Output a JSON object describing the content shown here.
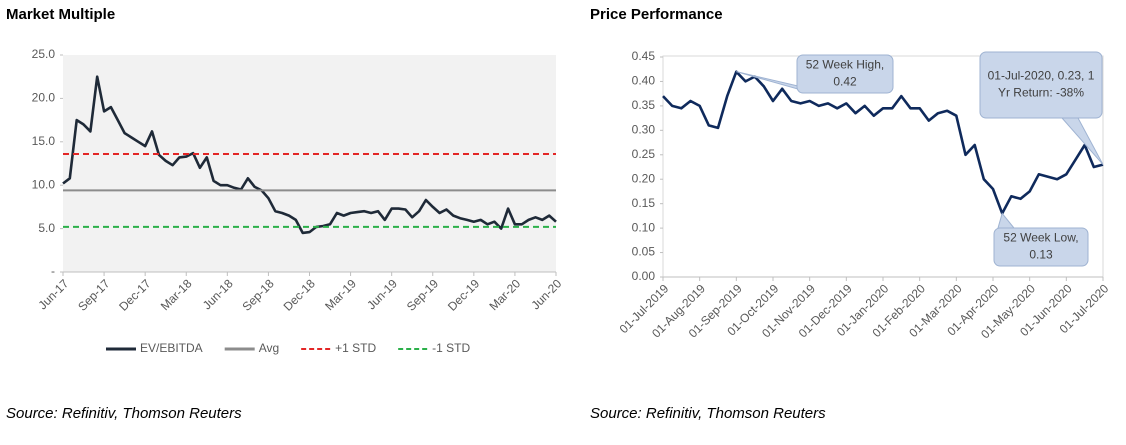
{
  "chart_data": [
    {
      "type": "line",
      "title": "Market Multiple",
      "source": "Source: Refinitiv, Thomson Reuters",
      "categories": [
        "Jun-17",
        null,
        null,
        null,
        null,
        null,
        "Sep-17",
        null,
        null,
        null,
        null,
        null,
        "Dec-17",
        null,
        null,
        null,
        null,
        null,
        "Mar-18",
        null,
        null,
        null,
        null,
        null,
        "Jun-18",
        null,
        null,
        null,
        null,
        null,
        "Sep-18",
        null,
        null,
        null,
        null,
        null,
        "Dec-18",
        null,
        null,
        null,
        null,
        null,
        "Mar-19",
        null,
        null,
        null,
        null,
        null,
        "Jun-19",
        null,
        null,
        null,
        null,
        null,
        "Sep-19",
        null,
        null,
        null,
        null,
        null,
        "Dec-19",
        null,
        null,
        null,
        null,
        null,
        "Mar-20",
        null,
        null,
        null,
        null,
        null,
        "Jun-20"
      ],
      "series": [
        {
          "name": "EV/EBITDA",
          "color": "#1f2a38",
          "style": "solid",
          "values": [
            10.2,
            10.8,
            17.5,
            17.0,
            16.2,
            22.5,
            18.5,
            19.0,
            17.5,
            16.0,
            15.5,
            15.0,
            14.5,
            16.2,
            13.5,
            12.8,
            12.3,
            13.2,
            13.3,
            13.7,
            12.0,
            13.2,
            10.5,
            10.0,
            10.0,
            9.7,
            9.5,
            10.8,
            9.8,
            9.4,
            8.5,
            7.0,
            6.8,
            6.5,
            6.0,
            4.5,
            4.6,
            5.2,
            5.3,
            5.5,
            6.8,
            6.5,
            6.8,
            6.9,
            7.0,
            6.8,
            7.0,
            6.0,
            7.3,
            7.3,
            7.2,
            6.3,
            7.0,
            8.3,
            7.5,
            6.8,
            7.2,
            6.5,
            6.2,
            6.0,
            5.8,
            6.0,
            5.5,
            5.8,
            5.0,
            7.3,
            5.5,
            5.5,
            6.0,
            6.3,
            6.0,
            6.5,
            5.8
          ]
        },
        {
          "name": "Avg",
          "color": "#8c8c8c",
          "style": "solid",
          "value": 9.4
        },
        {
          "name": "+1 STD",
          "color": "#e32626",
          "style": "dashed",
          "value": 13.6
        },
        {
          "name": "-1 STD",
          "color": "#2bb04a",
          "style": "dashed",
          "value": 5.2
        }
      ],
      "ylim": [
        0,
        25
      ],
      "yticks": [
        {
          "value": 0,
          "label": "-"
        },
        {
          "value": 5,
          "label": "5.0"
        },
        {
          "value": 10,
          "label": "10.0"
        },
        {
          "value": 15,
          "label": "15.0"
        },
        {
          "value": 20,
          "label": "20.0"
        },
        {
          "value": 25,
          "label": "25.0"
        }
      ],
      "legend": "bottom"
    },
    {
      "type": "line",
      "title": "Price Performance",
      "source": "Source: Refinitiv, Thomson Reuters",
      "categories": [
        "01-Jul-2019",
        null,
        null,
        null,
        "01-Aug-2019",
        null,
        null,
        null,
        "01-Sep-2019",
        null,
        null,
        null,
        "01-Oct-2019",
        null,
        null,
        null,
        "01-Nov-2019",
        null,
        null,
        null,
        "01-Dec-2019",
        null,
        null,
        null,
        "01-Jan-2020",
        null,
        null,
        null,
        "01-Feb-2020",
        null,
        null,
        null,
        "01-Mar-2020",
        null,
        null,
        null,
        "01-Apr-2020",
        null,
        null,
        null,
        "01-May-2020",
        null,
        null,
        null,
        "01-Jun-2020",
        null,
        null,
        null,
        "01-Jul-2020"
      ],
      "series": [
        {
          "color": "#0f2a5c",
          "style": "solid",
          "values": [
            0.37,
            0.35,
            0.345,
            0.36,
            0.35,
            0.31,
            0.305,
            0.37,
            0.42,
            0.4,
            0.41,
            0.39,
            0.36,
            0.385,
            0.36,
            0.355,
            0.36,
            0.35,
            0.355,
            0.345,
            0.355,
            0.335,
            0.35,
            0.33,
            0.345,
            0.345,
            0.37,
            0.345,
            0.345,
            0.32,
            0.335,
            0.34,
            0.33,
            0.25,
            0.27,
            0.2,
            0.18,
            0.13,
            0.165,
            0.16,
            0.175,
            0.21,
            0.205,
            0.2,
            0.21,
            0.24,
            0.27,
            0.225,
            0.23
          ]
        }
      ],
      "ylim": [
        0,
        0.45
      ],
      "yticks": [
        {
          "value": 0,
          "label": "0.00"
        },
        {
          "value": 0.05,
          "label": "0.05"
        },
        {
          "value": 0.1,
          "label": "0.10"
        },
        {
          "value": 0.15,
          "label": "0.15"
        },
        {
          "value": 0.2,
          "label": "0.20"
        },
        {
          "value": 0.25,
          "label": "0.25"
        },
        {
          "value": 0.3,
          "label": "0.30"
        },
        {
          "value": 0.35,
          "label": "0.35"
        },
        {
          "value": 0.4,
          "label": "0.40"
        },
        {
          "value": 0.45,
          "label": "0.45"
        }
      ],
      "annotations": [
        {
          "lines": [
            "52 Week High,",
            "0.42"
          ]
        },
        {
          "lines": [
            "52 Week Low,",
            "0.13"
          ]
        },
        {
          "lines": [
            "01-Jul-2020, 0.23, 1",
            "Yr Return: -38%"
          ]
        }
      ]
    }
  ]
}
